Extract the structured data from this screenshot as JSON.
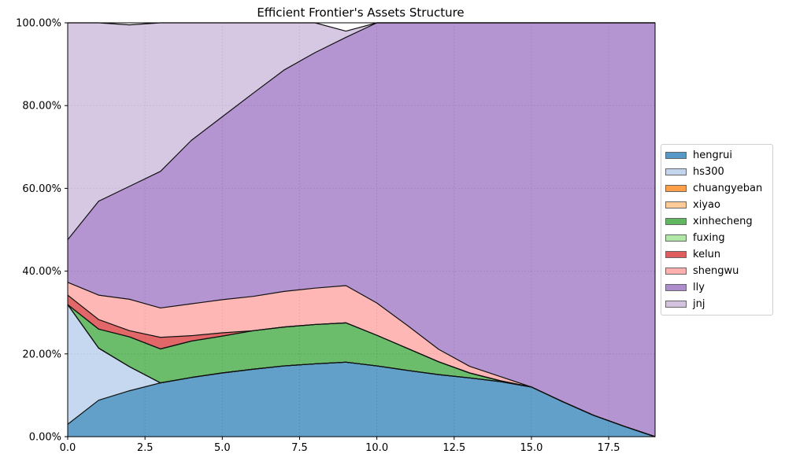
{
  "chart_data": {
    "type": "area",
    "stacked": true,
    "title": "Efficient Frontier's Assets Structure",
    "xlabel": "",
    "ylabel": "",
    "xlim": [
      0,
      19
    ],
    "ylim": [
      0,
      100
    ],
    "x_ticks": [
      0,
      2.5,
      5,
      7.5,
      10,
      12.5,
      15,
      17.5
    ],
    "x_tick_labels": [
      "0.0",
      "2.5",
      "5.0",
      "7.5",
      "10.0",
      "12.5",
      "15.0",
      "17.5"
    ],
    "y_ticks": [
      0,
      20,
      40,
      60,
      80,
      100
    ],
    "y_tick_labels": [
      "0.00%",
      "20.00%",
      "40.00%",
      "60.00%",
      "80.00%",
      "100.00%"
    ],
    "grid": true,
    "legend_position": "right-outside",
    "x": [
      0,
      1,
      2,
      3,
      4,
      5,
      6,
      7,
      8,
      9,
      10,
      11,
      12,
      13,
      14,
      15,
      16,
      17,
      18,
      19
    ],
    "series": [
      {
        "name": "hengrui",
        "color": "#1f77b4",
        "values": [
          3.0,
          8.8,
          11.1,
          13.0,
          14.3,
          15.4,
          16.3,
          17.1,
          17.6,
          18.0,
          17.1,
          16.0,
          15.0,
          14.2,
          13.3,
          12.0,
          8.5,
          5.2,
          2.5,
          0.0
        ]
      },
      {
        "name": "hs300",
        "color": "#aec7e8",
        "values": [
          28.9,
          12.6,
          5.8,
          0,
          0,
          0,
          0,
          0,
          0,
          0,
          0,
          0,
          0,
          0,
          0,
          0,
          0,
          0,
          0,
          0
        ]
      },
      {
        "name": "chuangyeban",
        "color": "#ff7f0e",
        "values": [
          0,
          0,
          0,
          0,
          0,
          0,
          0,
          0,
          0,
          0,
          0,
          0,
          0,
          0,
          0,
          0,
          0,
          0,
          0,
          0
        ]
      },
      {
        "name": "xiyao",
        "color": "#ffbb78",
        "values": [
          0,
          0,
          0,
          0,
          0,
          0,
          0,
          0,
          0,
          0,
          0,
          0,
          0,
          0,
          0,
          0,
          0,
          0,
          0,
          0
        ]
      },
      {
        "name": "xinhecheng",
        "color": "#2ca02c",
        "values": [
          0,
          4.6,
          7.2,
          8.2,
          8.8,
          8.9,
          9.3,
          9.4,
          9.5,
          9.5,
          7.4,
          5.3,
          3.1,
          1.2,
          0.2,
          0,
          0,
          0,
          0,
          0
        ]
      },
      {
        "name": "fuxing",
        "color": "#98df8a",
        "values": [
          0,
          0,
          0,
          0,
          0,
          0,
          0,
          0,
          0,
          0,
          0,
          0,
          0,
          0,
          0,
          0,
          0,
          0,
          0,
          0
        ]
      },
      {
        "name": "kelun",
        "color": "#d62728",
        "values": [
          2.3,
          2.3,
          1.5,
          2.8,
          1.3,
          0.8,
          0,
          0,
          0,
          0,
          0,
          0,
          0,
          0,
          0,
          0,
          0,
          0,
          0,
          0
        ]
      },
      {
        "name": "shengwu",
        "color": "#ff9896",
        "values": [
          3.1,
          5.9,
          7.6,
          7.1,
          7.7,
          8.0,
          8.3,
          8.6,
          8.8,
          9.0,
          7.8,
          5.5,
          3.0,
          1.6,
          1.0,
          0,
          0,
          0,
          0,
          0
        ]
      },
      {
        "name": "lly",
        "color": "#9467bd",
        "values": [
          10.3,
          22.7,
          27.3,
          33.0,
          39.5,
          44.2,
          49.1,
          53.5,
          56.9,
          60.0,
          67.7,
          73.2,
          78.9,
          83.0,
          85.5,
          88.0,
          91.5,
          94.8,
          97.5,
          100.0
        ]
      },
      {
        "name": "jnj",
        "color": "#c5b0d5",
        "values": [
          52.4,
          43.1,
          39.0,
          35.9,
          28.4,
          22.7,
          17.0,
          11.4,
          7.2,
          1.5,
          0,
          0,
          0,
          0,
          0,
          0,
          0,
          0,
          0,
          0
        ]
      }
    ]
  }
}
